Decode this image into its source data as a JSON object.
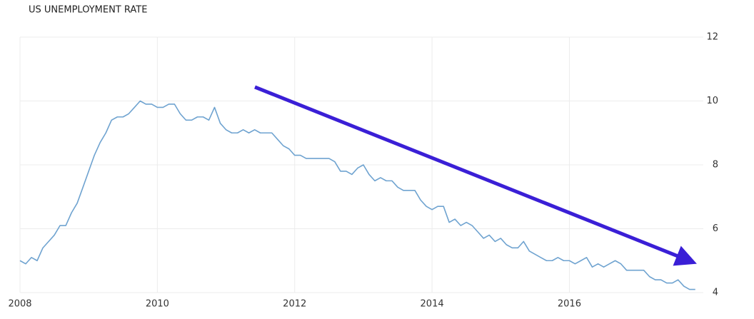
{
  "chart_data": {
    "type": "line",
    "title": "US UNEMPLOYMENT RATE",
    "x": [
      2008,
      2008.083,
      2008.167,
      2008.25,
      2008.333,
      2008.417,
      2008.5,
      2008.583,
      2008.667,
      2008.75,
      2008.833,
      2008.917,
      2009,
      2009.083,
      2009.167,
      2009.25,
      2009.333,
      2009.417,
      2009.5,
      2009.583,
      2009.667,
      2009.75,
      2009.833,
      2009.917,
      2010,
      2010.083,
      2010.167,
      2010.25,
      2010.333,
      2010.417,
      2010.5,
      2010.583,
      2010.667,
      2010.75,
      2010.833,
      2010.917,
      2011,
      2011.083,
      2011.167,
      2011.25,
      2011.333,
      2011.417,
      2011.5,
      2011.583,
      2011.667,
      2011.75,
      2011.833,
      2011.917,
      2012,
      2012.083,
      2012.167,
      2012.25,
      2012.333,
      2012.417,
      2012.5,
      2012.583,
      2012.667,
      2012.75,
      2012.833,
      2012.917,
      2013,
      2013.083,
      2013.167,
      2013.25,
      2013.333,
      2013.417,
      2013.5,
      2013.583,
      2013.667,
      2013.75,
      2013.833,
      2013.917,
      2014,
      2014.083,
      2014.167,
      2014.25,
      2014.333,
      2014.417,
      2014.5,
      2014.583,
      2014.667,
      2014.75,
      2014.833,
      2014.917,
      2015,
      2015.083,
      2015.167,
      2015.25,
      2015.333,
      2015.417,
      2015.5,
      2015.583,
      2015.667,
      2015.75,
      2015.833,
      2015.917,
      2016,
      2016.083,
      2016.167,
      2016.25,
      2016.333,
      2016.417,
      2016.5,
      2016.583,
      2016.667,
      2016.75,
      2016.833,
      2016.917,
      2017,
      2017.083,
      2017.167,
      2017.25,
      2017.333,
      2017.417,
      2017.5,
      2017.583,
      2017.667,
      2017.75,
      2017.833
    ],
    "series": [
      {
        "color": "#6fa3d0",
        "values": [
          5.0,
          4.9,
          5.1,
          5.0,
          5.4,
          5.6,
          5.8,
          6.1,
          6.1,
          6.5,
          6.8,
          7.3,
          7.8,
          8.3,
          8.7,
          9.0,
          9.4,
          9.5,
          9.5,
          9.6,
          9.8,
          10.0,
          9.9,
          9.9,
          9.8,
          9.8,
          9.9,
          9.9,
          9.6,
          9.4,
          9.4,
          9.5,
          9.5,
          9.4,
          9.8,
          9.3,
          9.1,
          9.0,
          9.0,
          9.1,
          9.0,
          9.1,
          9.0,
          9.0,
          9.0,
          8.8,
          8.6,
          8.5,
          8.3,
          8.3,
          8.2,
          8.2,
          8.2,
          8.2,
          8.2,
          8.1,
          7.8,
          7.8,
          7.7,
          7.9,
          8.0,
          7.7,
          7.5,
          7.6,
          7.5,
          7.5,
          7.3,
          7.2,
          7.2,
          7.2,
          6.9,
          6.7,
          6.6,
          6.7,
          6.7,
          6.2,
          6.3,
          6.1,
          6.2,
          6.1,
          5.9,
          5.7,
          5.8,
          5.6,
          5.7,
          5.5,
          5.4,
          5.4,
          5.6,
          5.3,
          5.2,
          5.1,
          5.0,
          5.0,
          5.1,
          5.0,
          5.0,
          4.9,
          5.0,
          5.1,
          4.8,
          4.9,
          4.8,
          4.9,
          5.0,
          4.9,
          4.7,
          4.7,
          4.7,
          4.7,
          4.5,
          4.4,
          4.4,
          4.3,
          4.3,
          4.4,
          4.2,
          4.1,
          4.1
        ]
      }
    ],
    "xlim": [
      2008,
      2017.95
    ],
    "xticks": [
      2008,
      2010,
      2012,
      2014,
      2016
    ],
    "ylim": [
      4,
      12
    ],
    "yticks": [
      4,
      6,
      8,
      10,
      12
    ],
    "grid": true
  }
}
